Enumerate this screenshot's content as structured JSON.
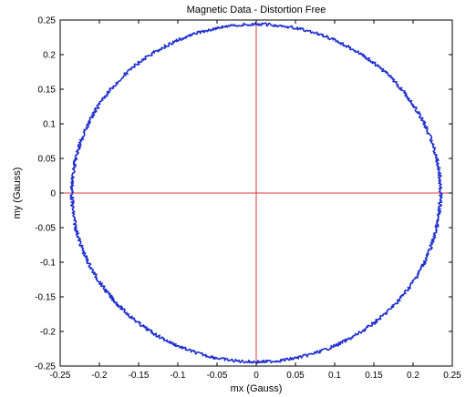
{
  "chart_data": {
    "type": "line",
    "title": "Magnetic Data - Distortion Free",
    "xlabel": "mx (Gauss)",
    "ylabel": "my (Gauss)",
    "xlim": [
      -0.25,
      0.25
    ],
    "ylim": [
      -0.25,
      0.25
    ],
    "xticks": [
      "-0.25",
      "-0.2",
      "-0.15",
      "-0.1",
      "-0.05",
      "0",
      "0.05",
      "0.1",
      "0.15",
      "0.2",
      "0.25"
    ],
    "yticks": [
      "-0.25",
      "-0.2",
      "-0.15",
      "-0.1",
      "-0.05",
      "0",
      "0.05",
      "0.1",
      "0.15",
      "0.2",
      "0.25"
    ],
    "grid": false,
    "reference_lines": {
      "horizontal_at_y": 0,
      "vertical_at_x": 0,
      "color": "#e0393e"
    },
    "series": [
      {
        "shape": "circle",
        "center": [
          0.0,
          0.0
        ],
        "radius_x": 0.235,
        "radius_y": 0.244,
        "color": "#1f2fd0"
      }
    ]
  }
}
